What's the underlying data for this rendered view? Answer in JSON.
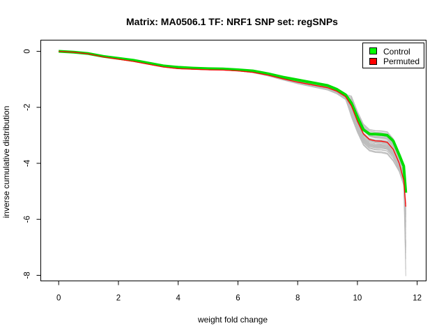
{
  "chart_data": {
    "type": "line",
    "title": "Matrix: MA0506.1 TF: NRF1 SNP set: regSNPs",
    "xlabel": "weight fold change",
    "ylabel": "inverse cumulative distribution",
    "xlim": [
      -0.6,
      12.3
    ],
    "ylim": [
      -8.2,
      0.4
    ],
    "x_ticks": [
      0,
      2,
      4,
      6,
      8,
      10,
      12
    ],
    "y_ticks": [
      0,
      -2,
      -4,
      -6,
      -8
    ],
    "x_tick_labels": [
      "0",
      "2",
      "4",
      "6",
      "8",
      "10",
      "12"
    ],
    "y_tick_labels": [
      "0",
      "-2",
      "-4",
      "-6",
      "-8"
    ],
    "legend": {
      "position": "top-right",
      "entries": [
        {
          "label": "Control",
          "color": "#00ff00"
        },
        {
          "label": "Permuted",
          "color": "#ff0000"
        }
      ]
    },
    "grid": false,
    "series": [
      {
        "name": "Control",
        "color": "#00dd00",
        "x": [
          0,
          0.5,
          1,
          1.5,
          2,
          2.5,
          3,
          3.5,
          4,
          4.5,
          5,
          5.5,
          6,
          6.5,
          7,
          7.5,
          8,
          8.5,
          9,
          9.3,
          9.6,
          9.8,
          10,
          10.2,
          10.4,
          10.6,
          10.8,
          11,
          11.2,
          11.4,
          11.55,
          11.62
        ],
        "y": [
          0,
          -0.03,
          -0.08,
          -0.18,
          -0.25,
          -0.32,
          -0.42,
          -0.52,
          -0.57,
          -0.6,
          -0.62,
          -0.63,
          -0.66,
          -0.7,
          -0.8,
          -0.92,
          -1.02,
          -1.12,
          -1.22,
          -1.35,
          -1.55,
          -1.85,
          -2.35,
          -2.8,
          -2.95,
          -2.96,
          -2.97,
          -3.0,
          -3.2,
          -3.7,
          -4.1,
          -5.05
        ]
      },
      {
        "name": "Permuted",
        "color": "#ff0000",
        "x": [
          0,
          0.5,
          1,
          1.5,
          2,
          2.5,
          3,
          3.5,
          4,
          4.5,
          5,
          5.5,
          6,
          6.5,
          7,
          7.5,
          8,
          8.5,
          9,
          9.3,
          9.6,
          9.8,
          10,
          10.2,
          10.4,
          10.6,
          10.8,
          11,
          11.2,
          11.4,
          11.55,
          11.62
        ],
        "y": [
          0,
          -0.03,
          -0.09,
          -0.2,
          -0.28,
          -0.36,
          -0.46,
          -0.56,
          -0.62,
          -0.64,
          -0.66,
          -0.67,
          -0.7,
          -0.75,
          -0.85,
          -0.98,
          -1.1,
          -1.2,
          -1.3,
          -1.42,
          -1.62,
          -1.95,
          -2.5,
          -2.95,
          -3.15,
          -3.2,
          -3.21,
          -3.25,
          -3.5,
          -4.0,
          -4.6,
          -5.55
        ]
      }
    ]
  }
}
